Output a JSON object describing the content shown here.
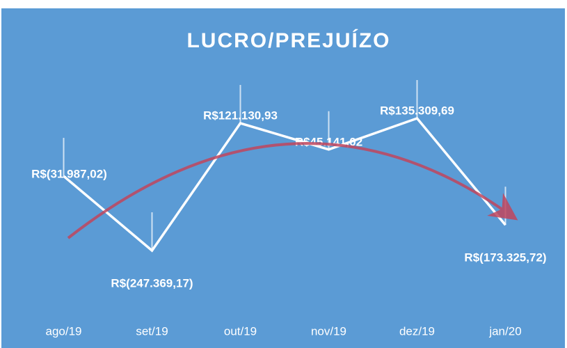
{
  "chart_data": {
    "type": "line",
    "title": "LUCRO/PREJUÍZO",
    "categories": [
      "ago/19",
      "set/19",
      "out/19",
      "nov/19",
      "dez/19",
      "jan/20"
    ],
    "series": [
      {
        "name": "LUCRO/PREJUÍZO",
        "color": "#ffffff",
        "values": [
          -31987.02,
          -247369.17,
          121130.93,
          45141.02,
          135309.69,
          -173325.72
        ],
        "value_labels": [
          "R$(31.987,02)",
          "R$(247.369,17)",
          "R$121.130,93",
          "R$45.141,02",
          "R$135.309,69",
          "R$(173.325,72)"
        ]
      }
    ]
  }
}
